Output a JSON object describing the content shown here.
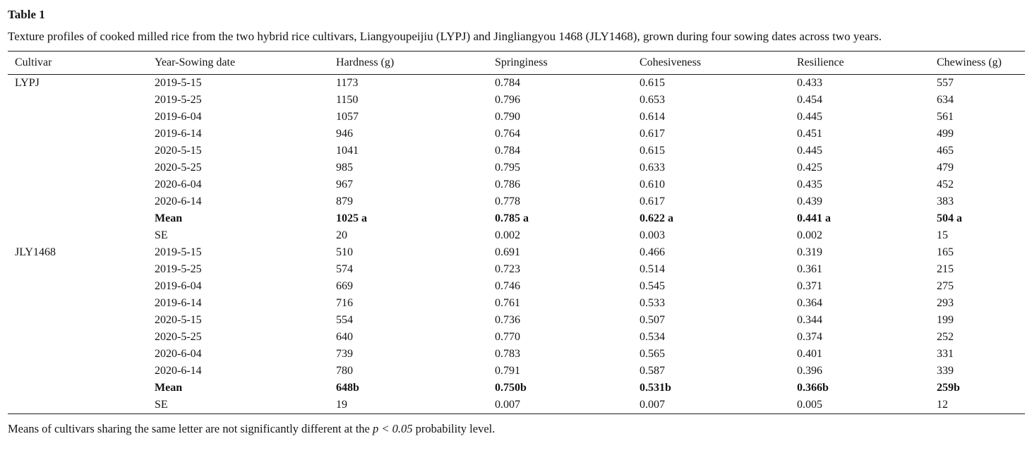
{
  "page": {
    "table_label": "Table 1",
    "caption": "Texture profiles of cooked milled rice from the two hybrid rice cultivars, Liangyoupeijiu (LYPJ) and Jingliangyou 1468 (JLY1468), grown during four sowing dates across two years.",
    "footnote_prefix": "Means of cultivars sharing the same letter are not significantly different at the ",
    "footnote_italic": "p < 0.05",
    "footnote_suffix": " probability level."
  },
  "chart_data": {
    "type": "table",
    "title": "Texture profiles of cooked milled rice from the two hybrid rice cultivars, Liangyoupeijiu (LYPJ) and Jingliangyou 1468 (JLY1468), grown during four sowing dates across two years.",
    "columns": [
      "Cultivar",
      "Year-Sowing date",
      "Hardness (g)",
      "Springiness",
      "Cohesiveness",
      "Resilience",
      "Chewiness (g)"
    ],
    "rows": [
      {
        "cultivar": "LYPJ",
        "date": "2019-5-15",
        "hardness": "1173",
        "springiness": "0.784",
        "cohesiveness": "0.615",
        "resilience": "0.433",
        "chewiness": "557",
        "bold": false
      },
      {
        "cultivar": "",
        "date": "2019-5-25",
        "hardness": "1150",
        "springiness": "0.796",
        "cohesiveness": "0.653",
        "resilience": "0.454",
        "chewiness": "634",
        "bold": false
      },
      {
        "cultivar": "",
        "date": "2019-6-04",
        "hardness": "1057",
        "springiness": "0.790",
        "cohesiveness": "0.614",
        "resilience": "0.445",
        "chewiness": "561",
        "bold": false
      },
      {
        "cultivar": "",
        "date": "2019-6-14",
        "hardness": "946",
        "springiness": "0.764",
        "cohesiveness": "0.617",
        "resilience": "0.451",
        "chewiness": "499",
        "bold": false
      },
      {
        "cultivar": "",
        "date": "2020-5-15",
        "hardness": "1041",
        "springiness": "0.784",
        "cohesiveness": "0.615",
        "resilience": "0.445",
        "chewiness": "465",
        "bold": false
      },
      {
        "cultivar": "",
        "date": "2020-5-25",
        "hardness": "985",
        "springiness": "0.795",
        "cohesiveness": "0.633",
        "resilience": "0.425",
        "chewiness": "479",
        "bold": false
      },
      {
        "cultivar": "",
        "date": "2020-6-04",
        "hardness": "967",
        "springiness": "0.786",
        "cohesiveness": "0.610",
        "resilience": "0.435",
        "chewiness": "452",
        "bold": false
      },
      {
        "cultivar": "",
        "date": "2020-6-14",
        "hardness": "879",
        "springiness": "0.778",
        "cohesiveness": "0.617",
        "resilience": "0.439",
        "chewiness": "383",
        "bold": false
      },
      {
        "cultivar": "",
        "date": "Mean",
        "hardness": "1025 a",
        "springiness": "0.785 a",
        "cohesiveness": "0.622 a",
        "resilience": "0.441 a",
        "chewiness": "504 a",
        "bold": true
      },
      {
        "cultivar": "",
        "date": "SE",
        "hardness": "20",
        "springiness": "0.002",
        "cohesiveness": "0.003",
        "resilience": "0.002",
        "chewiness": "15",
        "bold": false
      },
      {
        "cultivar": "JLY1468",
        "date": "2019-5-15",
        "hardness": "510",
        "springiness": "0.691",
        "cohesiveness": "0.466",
        "resilience": "0.319",
        "chewiness": "165",
        "bold": false
      },
      {
        "cultivar": "",
        "date": "2019-5-25",
        "hardness": "574",
        "springiness": "0.723",
        "cohesiveness": "0.514",
        "resilience": "0.361",
        "chewiness": "215",
        "bold": false
      },
      {
        "cultivar": "",
        "date": "2019-6-04",
        "hardness": "669",
        "springiness": "0.746",
        "cohesiveness": "0.545",
        "resilience": "0.371",
        "chewiness": "275",
        "bold": false
      },
      {
        "cultivar": "",
        "date": "2019-6-14",
        "hardness": "716",
        "springiness": "0.761",
        "cohesiveness": "0.533",
        "resilience": "0.364",
        "chewiness": "293",
        "bold": false
      },
      {
        "cultivar": "",
        "date": "2020-5-15",
        "hardness": "554",
        "springiness": "0.736",
        "cohesiveness": "0.507",
        "resilience": "0.344",
        "chewiness": "199",
        "bold": false
      },
      {
        "cultivar": "",
        "date": "2020-5-25",
        "hardness": "640",
        "springiness": "0.770",
        "cohesiveness": "0.534",
        "resilience": "0.374",
        "chewiness": "252",
        "bold": false
      },
      {
        "cultivar": "",
        "date": "2020-6-04",
        "hardness": "739",
        "springiness": "0.783",
        "cohesiveness": "0.565",
        "resilience": "0.401",
        "chewiness": "331",
        "bold": false
      },
      {
        "cultivar": "",
        "date": "2020-6-14",
        "hardness": "780",
        "springiness": "0.791",
        "cohesiveness": "0.587",
        "resilience": "0.396",
        "chewiness": "339",
        "bold": false
      },
      {
        "cultivar": "",
        "date": "Mean",
        "hardness": "648b",
        "springiness": "0.750b",
        "cohesiveness": "0.531b",
        "resilience": "0.366b",
        "chewiness": "259b",
        "bold": true
      },
      {
        "cultivar": "",
        "date": "SE",
        "hardness": "19",
        "springiness": "0.007",
        "cohesiveness": "0.007",
        "resilience": "0.005",
        "chewiness": "12",
        "bold": false
      }
    ]
  }
}
